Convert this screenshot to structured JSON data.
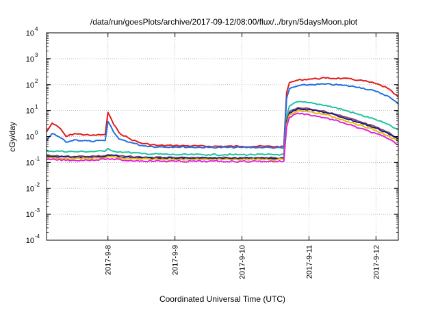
{
  "chart_data": {
    "type": "line",
    "title": "/data/run/goesPlots/archive/2017-09-12/08:00/flux/../bryn/5daysMoon.plot",
    "xlabel": "Coordinated Universal Time (UTC)",
    "ylabel": "cGy/day",
    "yscale": "log",
    "ylim": [
      0.0001,
      10000
    ],
    "xlim": [
      "2017-09-07 02:00",
      "2017-09-12 08:00"
    ],
    "grid": true,
    "legend": "none",
    "x_ticks": [
      {
        "x": "2017-09-08 00:00",
        "label": "2017-9-8"
      },
      {
        "x": "2017-09-09 00:00",
        "label": "2017-9-9"
      },
      {
        "x": "2017-09-10 00:00",
        "label": "2017-9-10"
      },
      {
        "x": "2017-09-11 00:00",
        "label": "2017-9-11"
      },
      {
        "x": "2017-09-12 00:00",
        "label": "2017-9-12"
      }
    ],
    "y_ticks": [
      {
        "base": "10",
        "exp": "4"
      },
      {
        "base": "10",
        "exp": "3"
      },
      {
        "base": "10",
        "exp": "2"
      },
      {
        "base": "10",
        "exp": "1"
      },
      {
        "base": "10",
        "exp": "0"
      },
      {
        "base": "10",
        "exp": "-1"
      },
      {
        "base": "10",
        "exp": "-2"
      },
      {
        "base": "10",
        "exp": "-3"
      },
      {
        "base": "10",
        "exp": "-4"
      }
    ],
    "series": [
      {
        "color": "#e41a1c",
        "x": [
          "2017-09-07 02:00",
          "2017-09-07 04:00",
          "2017-09-07 07:00",
          "2017-09-07 09:00",
          "2017-09-07 12:00",
          "2017-09-07 18:00",
          "2017-09-07 23:00",
          "2017-09-08 00:00",
          "2017-09-08 02:00",
          "2017-09-08 04:00",
          "2017-09-08 08:00",
          "2017-09-08 12:00",
          "2017-09-08 18:00",
          "2017-09-09 00:00",
          "2017-09-09 12:00",
          "2017-09-10 00:00",
          "2017-09-10 08:00",
          "2017-09-10 15:00",
          "2017-09-10 16:00",
          "2017-09-10 17:00",
          "2017-09-10 20:00",
          "2017-09-11 00:00",
          "2017-09-11 06:00",
          "2017-09-11 12:00",
          "2017-09-11 18:00",
          "2017-09-12 00:00",
          "2017-09-12 04:00",
          "2017-09-12 08:00"
        ],
        "y": [
          1.5,
          3.3,
          2.0,
          1.0,
          1.3,
          1.1,
          1.2,
          8.5,
          3.0,
          1.4,
          0.8,
          0.55,
          0.45,
          0.45,
          0.42,
          0.42,
          0.42,
          0.4,
          50,
          120,
          150,
          165,
          180,
          175,
          150,
          110,
          75,
          33
        ]
      },
      {
        "color": "#1f6fe0",
        "x": [
          "2017-09-07 02:00",
          "2017-09-07 04:00",
          "2017-09-07 07:00",
          "2017-09-07 09:00",
          "2017-09-07 12:00",
          "2017-09-07 18:00",
          "2017-09-07 23:00",
          "2017-09-08 00:00",
          "2017-09-08 02:00",
          "2017-09-08 04:00",
          "2017-09-08 08:00",
          "2017-09-08 12:00",
          "2017-09-08 18:00",
          "2017-09-09 00:00",
          "2017-09-09 12:00",
          "2017-09-10 00:00",
          "2017-09-10 08:00",
          "2017-09-10 15:00",
          "2017-09-10 16:00",
          "2017-09-10 17:00",
          "2017-09-10 20:00",
          "2017-09-11 00:00",
          "2017-09-11 06:00",
          "2017-09-11 12:00",
          "2017-09-11 18:00",
          "2017-09-12 00:00",
          "2017-09-12 04:00",
          "2017-09-12 08:00"
        ],
        "y": [
          0.7,
          1.3,
          0.9,
          0.6,
          0.75,
          0.65,
          0.7,
          3.8,
          1.5,
          0.8,
          0.6,
          0.45,
          0.4,
          0.4,
          0.38,
          0.38,
          0.38,
          0.36,
          30,
          70,
          90,
          100,
          105,
          95,
          80,
          55,
          38,
          18
        ]
      },
      {
        "color": "#20c2a0",
        "x": [
          "2017-09-07 02:00",
          "2017-09-07 12:00",
          "2017-09-07 23:00",
          "2017-09-08 00:00",
          "2017-09-08 02:00",
          "2017-09-08 06:00",
          "2017-09-08 12:00",
          "2017-09-09 00:00",
          "2017-09-09 12:00",
          "2017-09-10 00:00",
          "2017-09-10 08:00",
          "2017-09-10 15:00",
          "2017-09-10 16:00",
          "2017-09-10 17:00",
          "2017-09-10 20:00",
          "2017-09-11 00:00",
          "2017-09-11 06:00",
          "2017-09-11 12:00",
          "2017-09-11 18:00",
          "2017-09-12 00:00",
          "2017-09-12 04:00",
          "2017-09-12 08:00"
        ],
        "y": [
          0.28,
          0.26,
          0.27,
          0.35,
          0.27,
          0.25,
          0.22,
          0.2,
          0.2,
          0.2,
          0.2,
          0.2,
          6,
          15,
          22,
          20,
          16,
          11,
          7,
          4.5,
          3,
          1.8
        ]
      },
      {
        "color": "#8b4a72",
        "x": [
          "2017-09-07 02:00",
          "2017-09-07 12:00",
          "2017-09-07 23:00",
          "2017-09-08 00:00",
          "2017-09-08 06:00",
          "2017-09-08 12:00",
          "2017-09-09 00:00",
          "2017-09-09 12:00",
          "2017-09-10 00:00",
          "2017-09-10 08:00",
          "2017-09-10 15:00",
          "2017-09-10 16:00",
          "2017-09-10 17:00",
          "2017-09-10 20:00",
          "2017-09-11 00:00",
          "2017-09-11 06:00",
          "2017-09-11 12:00",
          "2017-09-11 18:00",
          "2017-09-12 00:00",
          "2017-09-12 04:00",
          "2017-09-12 08:00"
        ],
        "y": [
          0.18,
          0.17,
          0.18,
          0.2,
          0.17,
          0.16,
          0.15,
          0.15,
          0.15,
          0.15,
          0.15,
          4,
          9,
          13,
          12,
          9,
          6,
          3.8,
          2.3,
          1.5,
          0.85
        ]
      },
      {
        "color": "#1a1a80",
        "x": [
          "2017-09-07 02:00",
          "2017-09-07 12:00",
          "2017-09-07 23:00",
          "2017-09-08 00:00",
          "2017-09-08 06:00",
          "2017-09-08 12:00",
          "2017-09-09 00:00",
          "2017-09-09 12:00",
          "2017-09-10 00:00",
          "2017-09-10 08:00",
          "2017-09-10 15:00",
          "2017-09-10 16:00",
          "2017-09-10 17:00",
          "2017-09-10 20:00",
          "2017-09-11 00:00",
          "2017-09-11 06:00",
          "2017-09-11 12:00",
          "2017-09-11 18:00",
          "2017-09-12 00:00",
          "2017-09-12 04:00",
          "2017-09-12 08:00"
        ],
        "y": [
          0.17,
          0.16,
          0.17,
          0.19,
          0.16,
          0.15,
          0.145,
          0.145,
          0.145,
          0.145,
          0.145,
          3.6,
          8,
          12,
          11,
          8.5,
          5.5,
          3.5,
          2.1,
          1.4,
          0.8
        ]
      },
      {
        "color": "#e6b800",
        "x": [
          "2017-09-07 02:00",
          "2017-09-07 12:00",
          "2017-09-07 23:00",
          "2017-09-08 00:00",
          "2017-09-08 06:00",
          "2017-09-08 12:00",
          "2017-09-09 00:00",
          "2017-09-09 12:00",
          "2017-09-10 00:00",
          "2017-09-10 08:00",
          "2017-09-10 15:00",
          "2017-09-10 16:00",
          "2017-09-10 17:00",
          "2017-09-10 20:00",
          "2017-09-11 00:00",
          "2017-09-11 06:00",
          "2017-09-11 12:00",
          "2017-09-11 18:00",
          "2017-09-12 00:00",
          "2017-09-12 04:00",
          "2017-09-12 08:00"
        ],
        "y": [
          0.15,
          0.14,
          0.15,
          0.17,
          0.14,
          0.135,
          0.13,
          0.13,
          0.13,
          0.13,
          0.13,
          3,
          7,
          10,
          9,
          7,
          4.5,
          2.8,
          1.7,
          1.1,
          0.65
        ]
      },
      {
        "color": "#e020e0",
        "x": [
          "2017-09-07 02:00",
          "2017-09-07 12:00",
          "2017-09-07 23:00",
          "2017-09-08 00:00",
          "2017-09-08 06:00",
          "2017-09-08 12:00",
          "2017-09-09 00:00",
          "2017-09-09 12:00",
          "2017-09-10 00:00",
          "2017-09-10 08:00",
          "2017-09-10 15:00",
          "2017-09-10 16:00",
          "2017-09-10 17:00",
          "2017-09-10 20:00",
          "2017-09-11 00:00",
          "2017-09-11 06:00",
          "2017-09-11 12:00",
          "2017-09-11 18:00",
          "2017-09-12 00:00",
          "2017-09-12 04:00",
          "2017-09-12 08:00"
        ],
        "y": [
          0.13,
          0.12,
          0.13,
          0.14,
          0.12,
          0.115,
          0.11,
          0.11,
          0.11,
          0.11,
          0.11,
          2.4,
          5.5,
          8,
          7,
          5.2,
          3.5,
          2.1,
          1.3,
          0.85,
          0.48
        ]
      }
    ]
  }
}
